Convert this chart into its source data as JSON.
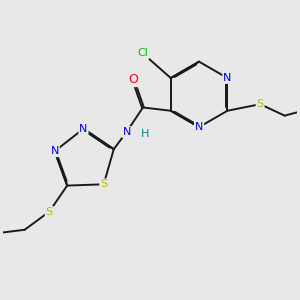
{
  "bg_color": "#e8e8e8",
  "bond_color": "#1a1a1a",
  "atom_colors": {
    "N": "#0000e0",
    "O": "#ff0000",
    "S": "#b8b800",
    "Cl": "#00bb00",
    "H": "#008888"
  },
  "lw": 1.4,
  "dbo": 0.035,
  "figsize": [
    3.0,
    3.0
  ],
  "dpi": 100
}
